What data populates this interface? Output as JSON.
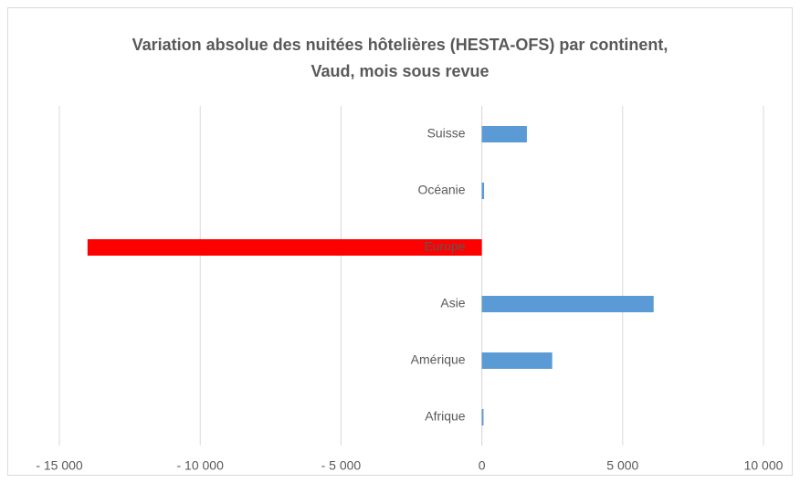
{
  "chart_data": {
    "type": "barh",
    "title": [
      "Variation absolue des nuitées hôtelières (HESTA-OFS) par continent,",
      "Vaud, mois sous revue"
    ],
    "categories": [
      "Suisse",
      "Océanie",
      "Europe",
      "Asie",
      "Amérique",
      "Afrique"
    ],
    "values": [
      1600,
      80,
      -14000,
      6100,
      2500,
      60
    ],
    "colors": [
      "#5b9bd5",
      "#5b9bd5",
      "#ff0000",
      "#5b9bd5",
      "#5b9bd5",
      "#5b9bd5"
    ],
    "xlim": [
      -15000,
      10000
    ],
    "xticks": [
      {
        "value": -15000,
        "label": "- 15 000"
      },
      {
        "value": -10000,
        "label": "- 10 000"
      },
      {
        "value": -5000,
        "label": "- 5 000"
      },
      0,
      {
        "value": 5000,
        "label": "5 000"
      },
      {
        "value": 10000,
        "label": "10 000"
      }
    ],
    "grid": true
  }
}
